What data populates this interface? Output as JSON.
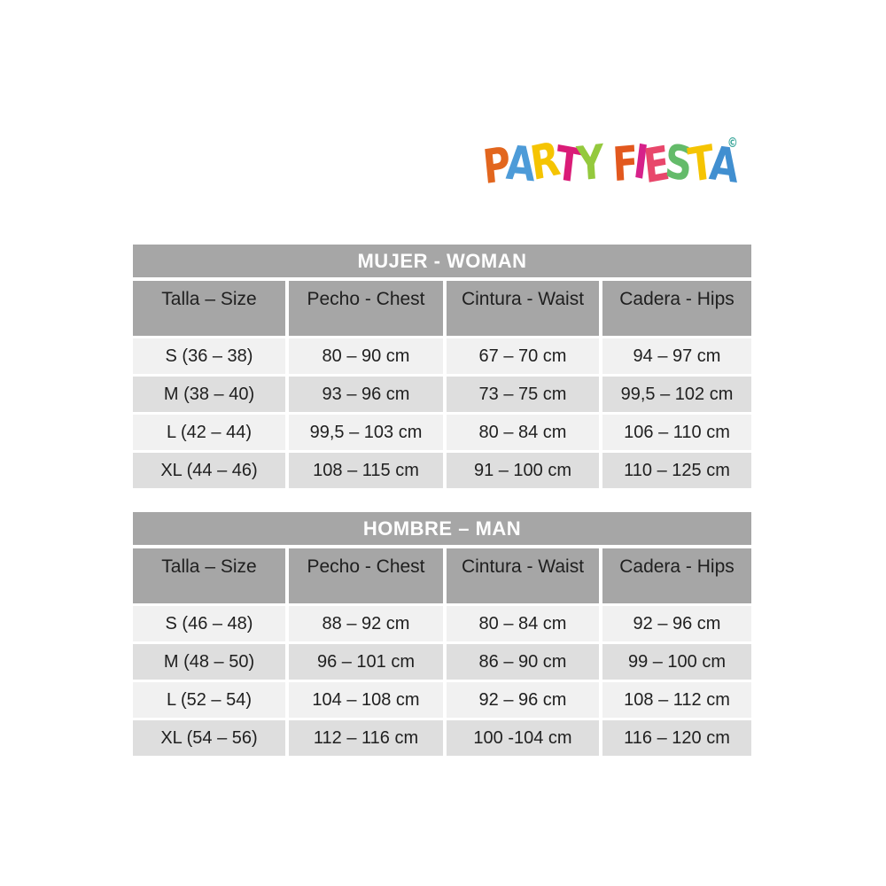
{
  "logo": {
    "words": [
      {
        "letters": [
          {
            "ch": "P",
            "color": "#E2661E"
          },
          {
            "ch": "A",
            "color": "#4D9BD8"
          },
          {
            "ch": "R",
            "color": "#F5C402"
          },
          {
            "ch": "T",
            "color": "#DA1C77"
          },
          {
            "ch": "Y",
            "color": "#94C93D"
          }
        ]
      },
      {
        "letters": [
          {
            "ch": "F",
            "color": "#E2581E"
          },
          {
            "ch": "I",
            "color": "#D6218A"
          },
          {
            "ch": "E",
            "color": "#E8476B"
          },
          {
            "ch": "S",
            "color": "#64BB6A"
          },
          {
            "ch": "T",
            "color": "#F5C402"
          },
          {
            "ch": "A",
            "color": "#418FD0"
          }
        ]
      }
    ],
    "mark": "©",
    "mark_color": "#3AA79B"
  },
  "colors": {
    "header_bg": "#A6A6A6",
    "row_light": "#F1F1F1",
    "row_dark": "#DEDEDE",
    "title_text": "#FFFFFF",
    "body_text": "#1F1F1F"
  },
  "tables": [
    {
      "title": "MUJER - WOMAN",
      "columns": [
        "Talla – Size",
        "Pecho - Chest",
        "Cintura - Waist",
        "Cadera - Hips"
      ],
      "rows": [
        [
          "S (36 – 38)",
          "80 – 90 cm",
          "67 – 70 cm",
          "94 – 97 cm"
        ],
        [
          "M (38 – 40)",
          "93 – 96 cm",
          "73 – 75 cm",
          "99,5 – 102 cm"
        ],
        [
          "L (42 – 44)",
          "99,5 – 103 cm",
          "80 – 84 cm",
          "106 – 110 cm"
        ],
        [
          "XL (44 – 46)",
          "108 – 115 cm",
          "91 – 100 cm",
          "110 – 125 cm"
        ]
      ]
    },
    {
      "title": "HOMBRE – MAN",
      "columns": [
        "Talla – Size",
        "Pecho - Chest",
        "Cintura - Waist",
        "Cadera - Hips"
      ],
      "rows": [
        [
          "S (46 – 48)",
          "88 – 92 cm",
          "80 – 84 cm",
          "92 – 96 cm"
        ],
        [
          "M (48 – 50)",
          "96 – 101 cm",
          "86 – 90 cm",
          "99 – 100 cm"
        ],
        [
          "L (52 – 54)",
          "104 – 108 cm",
          "92 – 96 cm",
          "108 – 112 cm"
        ],
        [
          "XL (54 – 56)",
          "112 – 116 cm",
          "100 -104 cm",
          "116 – 120 cm"
        ]
      ]
    }
  ]
}
